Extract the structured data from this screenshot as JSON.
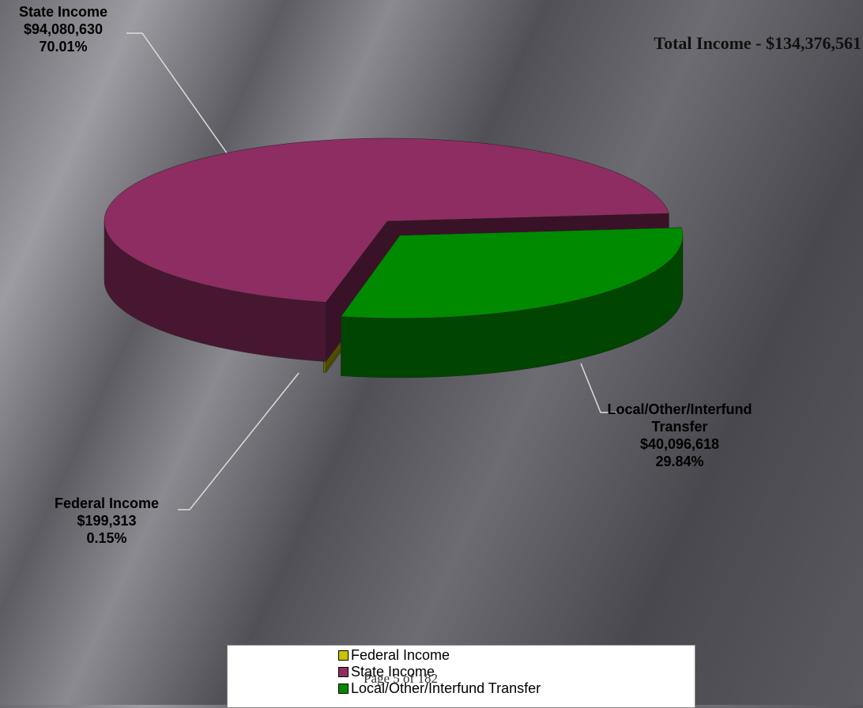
{
  "chart_data": {
    "type": "pie3d",
    "title": "Total Income - $134,376,561",
    "categories": [
      "Federal Income",
      "State Income",
      "Local/Other/Interfund Transfer"
    ],
    "values": [
      199313,
      94080630,
      40096618
    ],
    "value_labels": [
      "$199,313",
      "$94,080,630",
      "$40,096,618"
    ],
    "percent_labels": [
      "0.15%",
      "70.01%",
      "29.84%"
    ],
    "colors": [
      "#c8c400",
      "#8e2d62",
      "#008a00"
    ],
    "footer": "Page 5 of 182"
  }
}
